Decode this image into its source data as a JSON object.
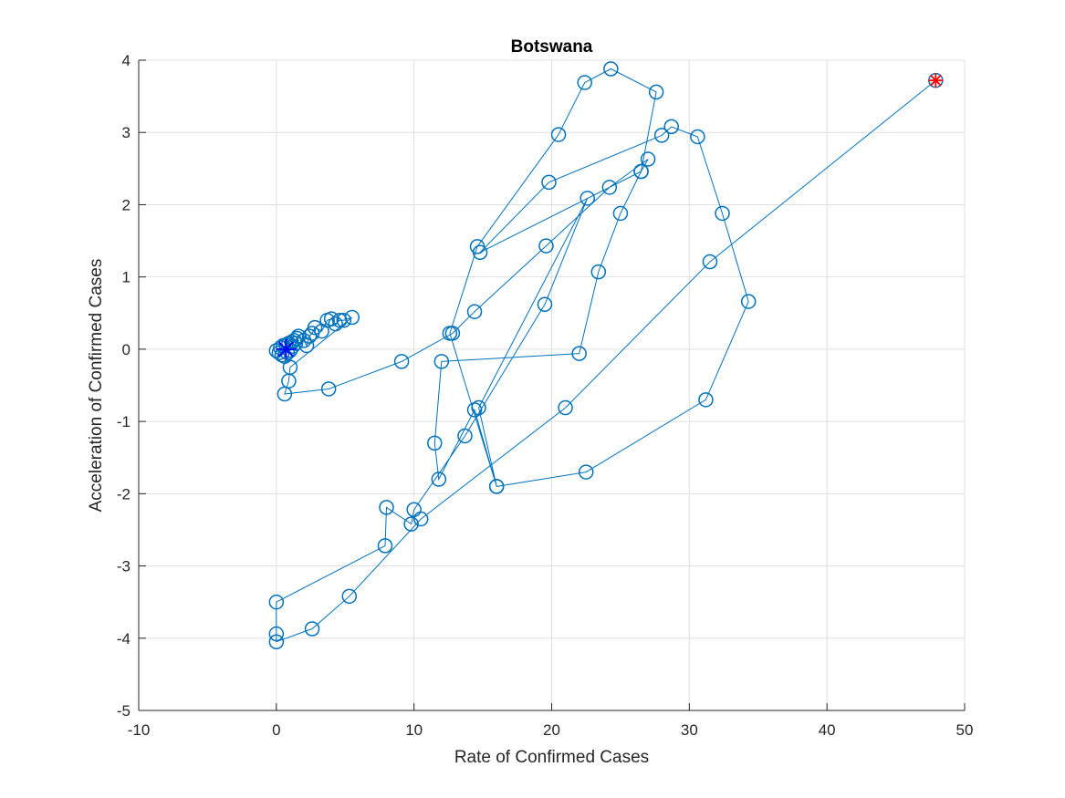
{
  "chart_data": {
    "type": "scatter",
    "title": "Botswana",
    "xlabel": "Rate of Confirmed Cases",
    "ylabel": "Acceleration of Confirmed Cases",
    "xlim": [
      -10,
      50
    ],
    "ylim": [
      -5,
      4
    ],
    "xticks": [
      -10,
      0,
      10,
      20,
      30,
      40,
      50
    ],
    "yticks": [
      -5,
      -4,
      -3,
      -2,
      -1,
      0,
      1,
      2,
      3,
      4
    ],
    "xtick_labels": [
      "-10",
      "0",
      "10",
      "20",
      "30",
      "40",
      "50"
    ],
    "ytick_labels": [
      "-5",
      "-4",
      "-3",
      "-2",
      "-1",
      "0",
      "1",
      "2",
      "3",
      "4"
    ],
    "grid": true,
    "series": [
      {
        "style": "line-with-circle-markers",
        "color": "#0072BD",
        "points": [
          [
            0.0,
            -0.02
          ],
          [
            0.2,
            -0.05
          ],
          [
            0.3,
            0.02
          ],
          [
            0.4,
            -0.08
          ],
          [
            0.5,
            0.05
          ],
          [
            0.6,
            -0.1
          ],
          [
            0.7,
            0.06
          ],
          [
            0.8,
            -0.05
          ],
          [
            0.9,
            0.08
          ],
          [
            1.0,
            -0.02
          ],
          [
            1.1,
            0.1
          ],
          [
            1.2,
            0.04
          ],
          [
            1.3,
            0.12
          ],
          [
            1.5,
            0.15
          ],
          [
            1.4,
            0.08
          ],
          [
            1.6,
            0.18
          ],
          [
            2.0,
            0.12
          ],
          [
            2.2,
            0.05
          ],
          [
            2.4,
            0.18
          ],
          [
            2.6,
            0.22
          ],
          [
            2.8,
            0.3
          ],
          [
            3.3,
            0.25
          ],
          [
            3.7,
            0.4
          ],
          [
            4.0,
            0.42
          ],
          [
            4.3,
            0.35
          ],
          [
            4.6,
            0.4
          ],
          [
            4.9,
            0.4
          ],
          [
            5.5,
            0.44
          ],
          [
            1.0,
            -0.25
          ],
          [
            0.9,
            -0.44
          ],
          [
            0.6,
            -0.62
          ],
          [
            3.8,
            -0.55
          ],
          [
            9.1,
            -0.17
          ],
          [
            12.8,
            0.22
          ],
          [
            14.4,
            0.52
          ],
          [
            19.6,
            1.43
          ],
          [
            24.2,
            2.24
          ],
          [
            27.0,
            2.63
          ],
          [
            26.5,
            2.46
          ],
          [
            25.0,
            1.88
          ],
          [
            23.4,
            1.07
          ],
          [
            22.0,
            -0.06
          ],
          [
            12.0,
            -0.17
          ],
          [
            11.5,
            -1.3
          ],
          [
            11.8,
            -1.8
          ],
          [
            14.4,
            -0.84
          ],
          [
            16.0,
            -1.9
          ],
          [
            12.6,
            0.22
          ],
          [
            14.6,
            1.42
          ],
          [
            20.5,
            2.97
          ],
          [
            22.4,
            3.69
          ],
          [
            24.3,
            3.88
          ],
          [
            27.6,
            3.56
          ],
          [
            26.5,
            2.46
          ],
          [
            14.8,
            1.34
          ],
          [
            19.8,
            2.31
          ],
          [
            28.0,
            2.96
          ],
          [
            28.7,
            3.08
          ],
          [
            30.6,
            2.94
          ],
          [
            32.4,
            1.88
          ],
          [
            34.3,
            0.66
          ],
          [
            31.2,
            -0.7
          ],
          [
            22.5,
            -1.7
          ],
          [
            16.0,
            -1.9
          ],
          [
            14.7,
            -0.81
          ],
          [
            22.6,
            2.09
          ],
          [
            19.5,
            0.62
          ],
          [
            13.7,
            -1.2
          ],
          [
            10.0,
            -2.22
          ],
          [
            9.8,
            -2.42
          ],
          [
            8.0,
            -2.19
          ],
          [
            7.9,
            -2.72
          ],
          [
            0.0,
            -3.5
          ],
          [
            0.0,
            -3.94
          ],
          [
            0.0,
            -4.05
          ],
          [
            2.6,
            -3.87
          ],
          [
            5.3,
            -3.42
          ],
          [
            10.5,
            -2.35
          ],
          [
            21.0,
            -0.81
          ],
          [
            31.5,
            1.21
          ],
          [
            47.9,
            3.72
          ]
        ]
      }
    ],
    "start_marker": {
      "point": [
        0.7,
        0.0
      ],
      "shape": "asterisk",
      "color": "#0000FF"
    },
    "end_marker": {
      "point": [
        47.9,
        3.72
      ],
      "shape": "asterisk-in-circle",
      "color": "#FF0000"
    }
  }
}
